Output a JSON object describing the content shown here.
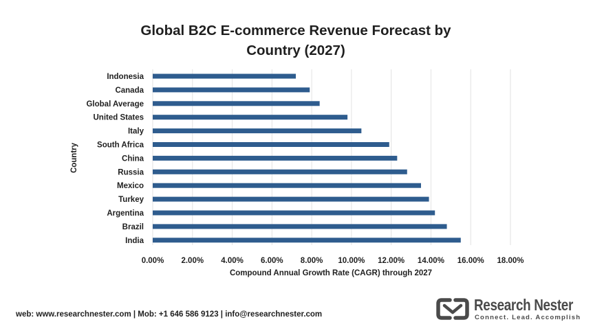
{
  "chart_data": {
    "type": "bar",
    "orientation": "horizontal",
    "title": "Global B2C E-commerce Revenue Forecast by Country (2027)",
    "xlabel": "Compound Annual Growth Rate (CAGR) through 2027",
    "ylabel": "Country",
    "categories": [
      "Indonesia",
      "Canada",
      "Global Average",
      "United States",
      "Italy",
      "South Africa",
      "China",
      "Russia",
      "Mexico",
      "Turkey",
      "Argentina",
      "Brazil",
      "India"
    ],
    "values": [
      0.072,
      0.079,
      0.084,
      0.098,
      0.105,
      0.119,
      0.123,
      0.128,
      0.135,
      0.139,
      0.142,
      0.148,
      0.155
    ],
    "xlim": [
      0,
      0.18
    ],
    "xticks": [
      0,
      0.02,
      0.04,
      0.06,
      0.08,
      0.1,
      0.12,
      0.14,
      0.16,
      0.18
    ],
    "xtick_labels": [
      "0.00%",
      "2.00%",
      "4.00%",
      "6.00%",
      "8.00%",
      "10.00%",
      "12.00%",
      "14.00%",
      "16.00%",
      "18.00%"
    ],
    "grid": "vertical",
    "legend": "none",
    "bar_color": "#2e5c8e",
    "grid_color": "#e2e2e2"
  },
  "footer": {
    "contact": "web: www.researchnester.com | Mob: +1 646 586 9123 | info@researchnester.com"
  },
  "logo": {
    "name": "Research Nester",
    "tagline": "Connect. Lead. Accomplish",
    "mark_color": "#4a4a4a"
  }
}
